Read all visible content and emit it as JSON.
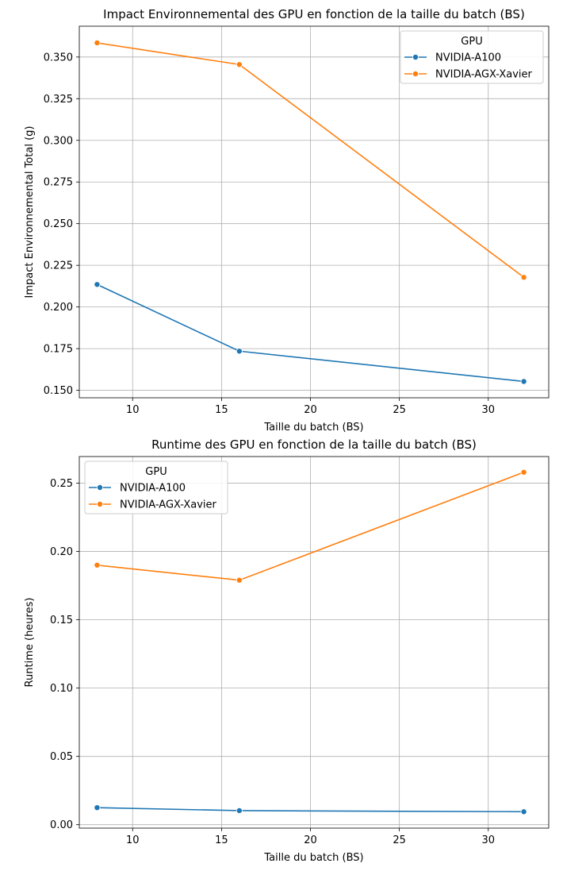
{
  "chart_data": [
    {
      "type": "line",
      "title": "Impact Environnemental des GPU en fonction de la taille du batch (BS)",
      "xlabel": "Taille du batch (BS)",
      "ylabel": "Impact Environnemental Total (g)",
      "xlim": [
        7,
        33.4
      ],
      "ylim": [
        0.1455,
        0.3685
      ],
      "xticks": [
        10,
        15,
        20,
        25,
        30
      ],
      "xtick_labels": [
        "10",
        "15",
        "20",
        "25",
        "30"
      ],
      "yticks": [
        0.15,
        0.175,
        0.2,
        0.225,
        0.25,
        0.275,
        0.3,
        0.325,
        0.35
      ],
      "ytick_labels": [
        "0.150",
        "0.175",
        "0.200",
        "0.225",
        "0.250",
        "0.275",
        "0.300",
        "0.325",
        "0.350"
      ],
      "grid": true,
      "legend": {
        "title": "GPU",
        "placement": "top-right"
      },
      "series": [
        {
          "name": "NVIDIA-A100",
          "color": "#1f77b4",
          "x": [
            8,
            16,
            32
          ],
          "y": [
            0.2135,
            0.1735,
            0.1553
          ]
        },
        {
          "name": "NVIDIA-AGX-Xavier",
          "color": "#ff7f0e",
          "x": [
            8,
            16,
            32
          ],
          "y": [
            0.3585,
            0.3455,
            0.2178
          ]
        }
      ]
    },
    {
      "type": "line",
      "title": "Runtime des GPU en fonction de la taille du batch (BS)",
      "xlabel": "Taille du batch (BS)",
      "ylabel": "Runtime (heures)",
      "xlim": [
        7,
        33.4
      ],
      "ylim": [
        -0.0025,
        0.2695
      ],
      "xticks": [
        10,
        15,
        20,
        25,
        30
      ],
      "xtick_labels": [
        "10",
        "15",
        "20",
        "25",
        "30"
      ],
      "yticks": [
        0.0,
        0.05,
        0.1,
        0.15,
        0.2,
        0.25
      ],
      "ytick_labels": [
        "0.00",
        "0.05",
        "0.10",
        "0.15",
        "0.20",
        "0.25"
      ],
      "grid": true,
      "legend": {
        "title": "GPU",
        "placement": "top-left"
      },
      "series": [
        {
          "name": "NVIDIA-A100",
          "color": "#1f77b4",
          "x": [
            8,
            16,
            32
          ],
          "y": [
            0.0125,
            0.0103,
            0.0095
          ]
        },
        {
          "name": "NVIDIA-AGX-Xavier",
          "color": "#ff7f0e",
          "x": [
            8,
            16,
            32
          ],
          "y": [
            0.19,
            0.179,
            0.258
          ]
        }
      ]
    }
  ]
}
